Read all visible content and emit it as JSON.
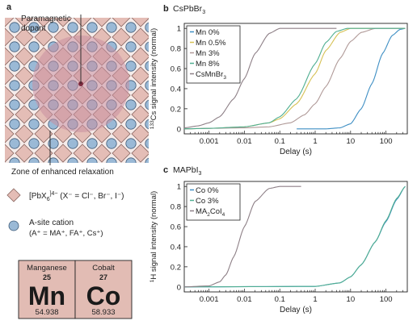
{
  "panel_a": {
    "letter": "a",
    "callout_top": [
      "Paramagnetic",
      "dopant"
    ],
    "callout_bottom": "Zone of enhanced relaxation",
    "legend": [
      {
        "main": "[PbX",
        "sub": "6",
        "sup": "]4−",
        "rest": " (X⁻ = Cl⁻, Br⁻, I⁻)"
      },
      {
        "line1": "A-site cation",
        "line2": "(A⁺ = MA⁺, FA⁺, Cs⁺)"
      }
    ],
    "elements": [
      {
        "name": "Manganese",
        "number": "25",
        "symbol": "Mn",
        "mass": "54.938"
      },
      {
        "name": "Cobalt",
        "number": "27",
        "symbol": "Co",
        "mass": "58.933"
      }
    ],
    "colors": {
      "octahedron": "#e4bdb6",
      "octahedron_edge": "#8a6660",
      "cation": "#9ab9d6",
      "cation_edge": "#3d5a78",
      "dopant_zone": "#c98fa1",
      "tile": "#e2bcb4"
    }
  },
  "chart_data": [
    {
      "type": "line",
      "panel": "b",
      "title": "CsPbBr",
      "title_sub": "3",
      "xlabel": "Delay (s)",
      "ylabel_sup": "133",
      "ylabel": "Cs signal intensity (normal)",
      "xscale": "log",
      "xlim": [
        0.0002,
        400
      ],
      "ylim": [
        -0.05,
        1.05
      ],
      "x_ticks": [
        0.001,
        0.01,
        0.1,
        1,
        10,
        100
      ],
      "x_tick_labels": [
        "0.001",
        "0.01",
        "0.1",
        "1",
        "10",
        "100"
      ],
      "y_ticks": [
        0,
        0.2,
        0.4,
        0.6,
        0.8,
        1
      ],
      "y_tick_labels": [
        "0",
        "0.2",
        "0.4",
        "0.6",
        "0.8",
        "1"
      ],
      "legend_position": "top-left",
      "series": [
        {
          "name": "Mn 0%",
          "color": "#3f8fc4",
          "points": [
            [
              0.3,
              0
            ],
            [
              2,
              0
            ],
            [
              5,
              0.01
            ],
            [
              10,
              0.05
            ],
            [
              20,
              0.2
            ],
            [
              40,
              0.45
            ],
            [
              80,
              0.75
            ],
            [
              150,
              0.93
            ],
            [
              250,
              0.99
            ],
            [
              350,
              1
            ]
          ]
        },
        {
          "name": "Mn 0.5%",
          "color": "#d6c155",
          "points": [
            [
              0.0002,
              0
            ],
            [
              0.001,
              0.005
            ],
            [
              0.01,
              0.02
            ],
            [
              0.05,
              0.06
            ],
            [
              0.1,
              0.1
            ],
            [
              0.3,
              0.25
            ],
            [
              1,
              0.55
            ],
            [
              2,
              0.78
            ],
            [
              5,
              0.96
            ],
            [
              10,
              1
            ],
            [
              350,
              1
            ]
          ]
        },
        {
          "name": "Mn 3%",
          "color": "#b09a98",
          "points": [
            [
              0.0002,
              0
            ],
            [
              0.001,
              0.005
            ],
            [
              0.01,
              0.01
            ],
            [
              0.05,
              0.02
            ],
            [
              0.2,
              0.06
            ],
            [
              0.5,
              0.14
            ],
            [
              1,
              0.25
            ],
            [
              2,
              0.42
            ],
            [
              5,
              0.7
            ],
            [
              10,
              0.87
            ],
            [
              20,
              0.96
            ],
            [
              50,
              1
            ],
            [
              350,
              1
            ]
          ]
        },
        {
          "name": "Mn 8%",
          "color": "#4fae91",
          "points": [
            [
              0.0002,
              0
            ],
            [
              0.001,
              0.005
            ],
            [
              0.01,
              0.02
            ],
            [
              0.05,
              0.06
            ],
            [
              0.1,
              0.12
            ],
            [
              0.3,
              0.3
            ],
            [
              1,
              0.65
            ],
            [
              2,
              0.86
            ],
            [
              4,
              0.97
            ],
            [
              8,
              1
            ],
            [
              350,
              1
            ]
          ]
        },
        {
          "name": "CsMnBr",
          "name_sub": "3",
          "color": "#8d7f86",
          "points": [
            [
              0.0002,
              0.01
            ],
            [
              0.0005,
              0.03
            ],
            [
              0.001,
              0.06
            ],
            [
              0.002,
              0.12
            ],
            [
              0.005,
              0.3
            ],
            [
              0.01,
              0.5
            ],
            [
              0.02,
              0.75
            ],
            [
              0.05,
              0.95
            ],
            [
              0.1,
              1
            ],
            [
              4,
              1
            ]
          ]
        }
      ]
    },
    {
      "type": "line",
      "panel": "c",
      "title": "MAPbI",
      "title_sub": "3",
      "xlabel": "Delay (s)",
      "ylabel_sup": "1",
      "ylabel": "H signal intensity (normal)",
      "xscale": "log",
      "xlim": [
        0.0002,
        400
      ],
      "ylim": [
        -0.05,
        1.05
      ],
      "x_ticks": [
        0.001,
        0.01,
        0.1,
        1,
        10,
        100
      ],
      "x_tick_labels": [
        "0.001",
        "0.01",
        "0.1",
        "1",
        "10",
        "100"
      ],
      "y_ticks": [
        0,
        0.2,
        0.4,
        0.6,
        0.8,
        1
      ],
      "y_tick_labels": [
        "0",
        "0.2",
        "0.4",
        "0.6",
        "0.8",
        "1"
      ],
      "legend_position": "top-left",
      "series": [
        {
          "name": "Co 0%",
          "color": "#3f8fc4",
          "points": [
            [
              0.0002,
              0
            ],
            [
              1,
              0.005
            ],
            [
              5,
              0.04
            ],
            [
              10,
              0.1
            ],
            [
              20,
              0.22
            ],
            [
              50,
              0.45
            ],
            [
              100,
              0.65
            ],
            [
              200,
              0.87
            ],
            [
              350,
              1
            ]
          ]
        },
        {
          "name": "Co 3%",
          "color": "#4fae91",
          "points": [
            [
              0.0002,
              0
            ],
            [
              1,
              0.005
            ],
            [
              5,
              0.04
            ],
            [
              10,
              0.1
            ],
            [
              20,
              0.22
            ],
            [
              50,
              0.45
            ],
            [
              100,
              0.66
            ],
            [
              200,
              0.88
            ],
            [
              350,
              1
            ]
          ]
        },
        {
          "name": "MA",
          "name_sub": "2",
          "name_rest": "CoI",
          "name_sub2": "4",
          "color": "#8d7f86",
          "points": [
            [
              0.0002,
              0
            ],
            [
              0.001,
              0.01
            ],
            [
              0.002,
              0.05
            ],
            [
              0.003,
              0.12
            ],
            [
              0.005,
              0.3
            ],
            [
              0.01,
              0.6
            ],
            [
              0.02,
              0.85
            ],
            [
              0.05,
              0.98
            ],
            [
              0.1,
              1
            ],
            [
              0.4,
              1
            ]
          ]
        }
      ]
    }
  ]
}
